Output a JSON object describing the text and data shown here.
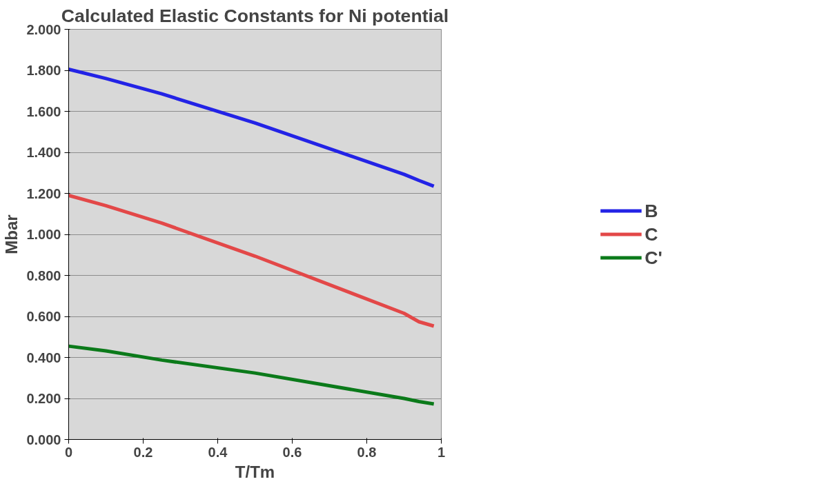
{
  "chart_data": {
    "type": "line",
    "title": "Calculated Elastic Constants for Ni potential",
    "xlabel": "T/Tm",
    "ylabel": "Mbar",
    "x": [
      0,
      0.1,
      0.25,
      0.5,
      0.9,
      0.94,
      0.98
    ],
    "series": [
      {
        "name": "B",
        "color": "#2323e6",
        "values": [
          1.805,
          1.76,
          1.685,
          1.543,
          1.293,
          1.263,
          1.235
        ]
      },
      {
        "name": "C",
        "color": "#e34848",
        "values": [
          1.19,
          1.14,
          1.055,
          0.894,
          0.615,
          0.574,
          0.553
        ]
      },
      {
        "name": "C'",
        "color": "#0b7a1a",
        "values": [
          0.455,
          0.432,
          0.387,
          0.324,
          0.2,
          0.185,
          0.173
        ]
      }
    ],
    "xlim": [
      0,
      1
    ],
    "ylim": [
      0,
      2
    ],
    "xticks": [
      0,
      0.2,
      0.4,
      0.6,
      0.8,
      1
    ],
    "yticks": [
      {
        "value": 0,
        "label": "0.000"
      },
      {
        "value": 0.2,
        "label": "0.200"
      },
      {
        "value": 0.4,
        "label": "0.400"
      },
      {
        "value": 0.6,
        "label": "0.600"
      },
      {
        "value": 0.8,
        "label": "0.800"
      },
      {
        "value": 1,
        "label": "1.000"
      },
      {
        "value": 1.2,
        "label": "1.200"
      },
      {
        "value": 1.4,
        "label": "1.400"
      },
      {
        "value": 1.6,
        "label": "1.600"
      },
      {
        "value": 1.8,
        "label": "1.800"
      },
      {
        "value": 2,
        "label": "2.000"
      }
    ],
    "grid": "y",
    "legend": "right",
    "marker": "none",
    "line_style": "solid"
  }
}
